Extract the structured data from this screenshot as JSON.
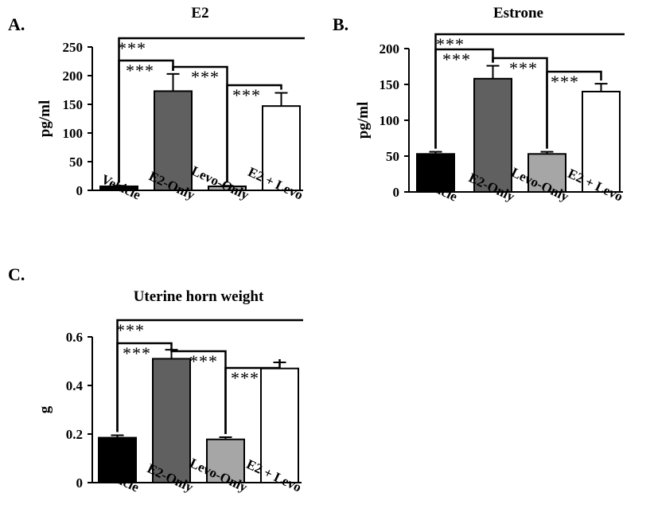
{
  "chart_data": [
    {
      "panel_label": "A.",
      "type": "bar",
      "title": "E2",
      "ylabel": "pg/ml",
      "categories": [
        "Vehicle",
        "E2-Only",
        "Levo-Only",
        "E2 + Levo"
      ],
      "values": [
        7,
        173,
        7,
        147
      ],
      "errors": [
        1,
        30,
        1,
        23
      ],
      "ylim": [
        0,
        250
      ],
      "yticks": [
        "0",
        "50",
        "100",
        "150",
        "200",
        "250"
      ],
      "bar_colors": [
        "#000000",
        "#606060",
        "#a6a6a6",
        "#ffffff"
      ],
      "significance": [
        {
          "from": 0,
          "to": 3,
          "label": "***"
        },
        {
          "from": 0,
          "to": 1,
          "label": "***"
        },
        {
          "from": 1,
          "to": 2,
          "label": "***"
        },
        {
          "from": 2,
          "to": 3,
          "label": "***"
        }
      ]
    },
    {
      "panel_label": "B.",
      "type": "bar",
      "title": "Estrone",
      "ylabel": "pg/ml",
      "categories": [
        "Vehicle",
        "E2-Only",
        "Levo-Only",
        "E2 + Levo"
      ],
      "values": [
        53,
        158,
        53,
        140
      ],
      "errors": [
        3,
        18,
        3,
        11
      ],
      "ylim": [
        0,
        200
      ],
      "yticks": [
        "0",
        "50",
        "100",
        "150",
        "200"
      ],
      "bar_colors": [
        "#000000",
        "#606060",
        "#a6a6a6",
        "#ffffff"
      ],
      "significance": [
        {
          "from": 0,
          "to": 3,
          "label": "***"
        },
        {
          "from": 0,
          "to": 1,
          "label": "***"
        },
        {
          "from": 1,
          "to": 2,
          "label": "***"
        },
        {
          "from": 2,
          "to": 3,
          "label": "***"
        }
      ]
    },
    {
      "panel_label": "C.",
      "type": "bar",
      "title": "Uterine horn weight",
      "ylabel": "g",
      "categories": [
        "Vehicle",
        "E2-Only",
        "Levo-Only",
        "E2 + Levo"
      ],
      "values": [
        0.185,
        0.51,
        0.178,
        0.47
      ],
      "errors": [
        0.01,
        0.037,
        0.009,
        0.025
      ],
      "ylim": [
        0,
        0.6
      ],
      "yticks": [
        "0",
        "0.2",
        "0.4",
        "0.6"
      ],
      "bar_colors": [
        "#000000",
        "#606060",
        "#a6a6a6",
        "#ffffff"
      ],
      "significance": [
        {
          "from": 0,
          "to": 3,
          "label": "***"
        },
        {
          "from": 0,
          "to": 1,
          "label": "***"
        },
        {
          "from": 1,
          "to": 2,
          "label": "***"
        },
        {
          "from": 2,
          "to": 3,
          "label": "***"
        }
      ]
    }
  ]
}
